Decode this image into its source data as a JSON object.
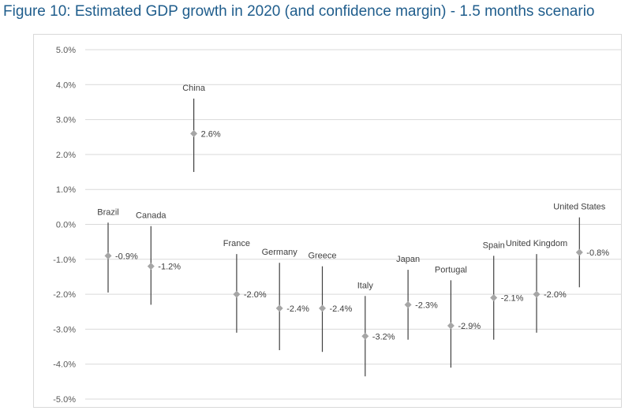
{
  "chart_data": {
    "type": "scatter",
    "title": "Figure 10: Estimated GDP growth in 2020 (and confidence margin) - 1.5 months scenario",
    "xlabel": "",
    "ylabel": "",
    "ylim": [
      -5.0,
      5.0
    ],
    "y_ticks": [
      "5.0%",
      "4.0%",
      "3.0%",
      "2.0%",
      "1.0%",
      "0.0%",
      "-1.0%",
      "-2.0%",
      "-3.0%",
      "-4.0%",
      "-5.0%"
    ],
    "y_tick_values": [
      5,
      4,
      3,
      2,
      1,
      0,
      -1,
      -2,
      -3,
      -4,
      -5
    ],
    "grid": true,
    "point_color": "#a6a6a6",
    "error_bar_color": "#404040",
    "grid_color": "#d9d9d9",
    "categories": [
      "Brazil",
      "Canada",
      "China",
      "France",
      "Germany",
      "Greece",
      "Italy",
      "Japan",
      "Portugal",
      "Spain",
      "United Kingdom",
      "United States"
    ],
    "values": [
      -0.9,
      -1.2,
      2.6,
      -2.0,
      -2.4,
      -2.4,
      -3.2,
      -2.3,
      -2.9,
      -2.1,
      -2.0,
      -0.8
    ],
    "value_labels": [
      "-0.9%",
      "-1.2%",
      "2.6%",
      "-2.0%",
      "-2.4%",
      "-2.4%",
      "-3.2%",
      "-2.3%",
      "-2.9%",
      "-2.1%",
      "-2.0%",
      "-0.8%"
    ],
    "upper": [
      0.05,
      -0.05,
      3.6,
      -0.85,
      -1.1,
      -1.2,
      -2.05,
      -1.3,
      -1.6,
      -0.9,
      -0.85,
      0.2
    ],
    "lower": [
      -1.95,
      -2.3,
      1.5,
      -3.1,
      -3.6,
      -3.65,
      -4.35,
      -3.3,
      -4.1,
      -3.3,
      -3.1,
      -1.8
    ]
  }
}
